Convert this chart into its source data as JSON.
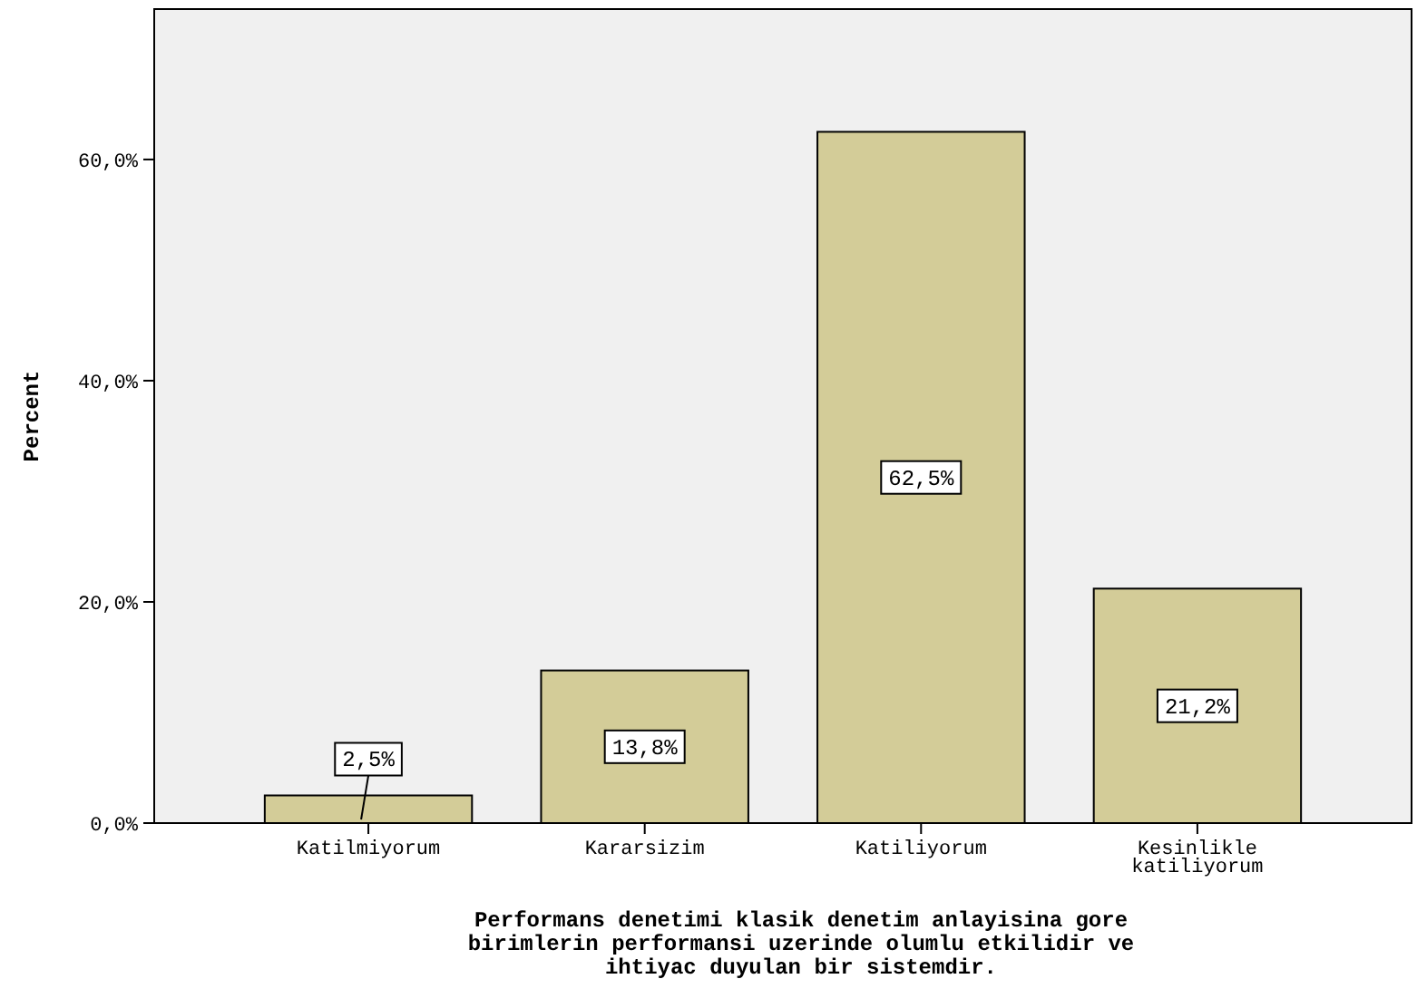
{
  "chart_data": {
    "type": "bar",
    "ylabel": "Percent",
    "xlabel": "Performans denetimi klasik denetim anlayisina gore birimlerin performansi uzerinde olumlu etkilidir ve ihtiyac duyulan bir sistemdir.",
    "categories": [
      "Katilmiyorum",
      "Kararsizim",
      "Katiliyorum",
      "Kesinlikle katiliyorum"
    ],
    "values": [
      2.5,
      13.8,
      62.5,
      21.2
    ],
    "color": "#d3cc98",
    "value_labels": [
      "2,5%",
      "13,8%",
      "62,5%",
      "21,2%"
    ],
    "ylim": [
      0,
      73.6
    ],
    "yticks": [
      {
        "value": 0,
        "label": "0,0%"
      },
      {
        "value": 20,
        "label": "20,0%"
      },
      {
        "value": 40,
        "label": "40,0%"
      },
      {
        "value": 60,
        "label": "60,0%"
      }
    ]
  }
}
